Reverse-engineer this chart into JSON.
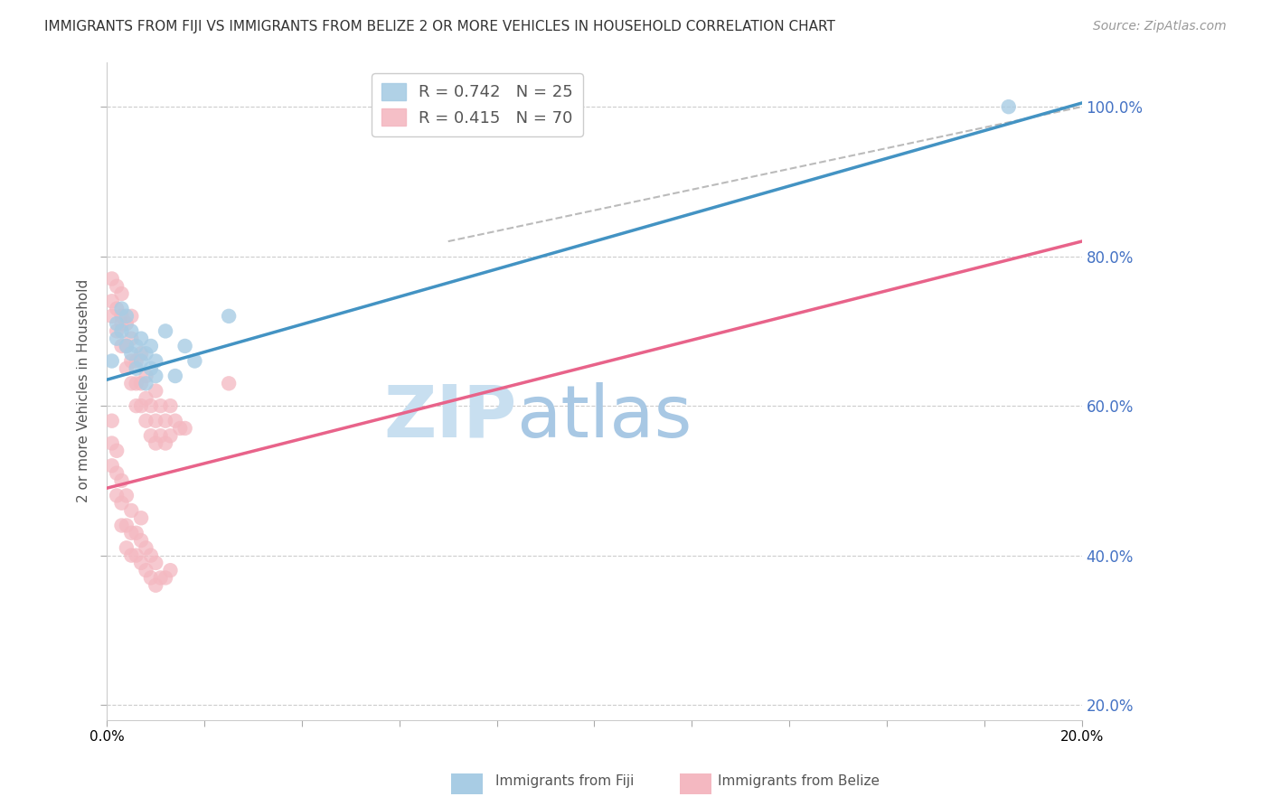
{
  "title": "IMMIGRANTS FROM FIJI VS IMMIGRANTS FROM BELIZE 2 OR MORE VEHICLES IN HOUSEHOLD CORRELATION CHART",
  "source_text": "Source: ZipAtlas.com",
  "ylabel": "2 or more Vehicles in Household",
  "xlim": [
    0.0,
    0.2
  ],
  "ylim": [
    0.18,
    1.06
  ],
  "right_yticks": [
    0.2,
    0.4,
    0.6,
    0.8,
    1.0
  ],
  "fiji_R": 0.742,
  "fiji_N": 25,
  "belize_R": 0.415,
  "belize_N": 70,
  "fiji_color": "#a8cce4",
  "belize_color": "#f4b8c1",
  "fiji_line_color": "#4393c3",
  "belize_line_color": "#e8638a",
  "fiji_line": {
    "x0": 0.0,
    "y0": 0.635,
    "x1": 0.2,
    "y1": 1.005
  },
  "belize_line": {
    "x0": 0.0,
    "y0": 0.49,
    "x1": 0.2,
    "y1": 0.82
  },
  "diag_line": {
    "x0": 0.07,
    "y0": 0.82,
    "x1": 0.2,
    "y1": 1.0
  },
  "fiji_scatter_x": [
    0.001,
    0.002,
    0.002,
    0.003,
    0.003,
    0.004,
    0.004,
    0.005,
    0.005,
    0.006,
    0.006,
    0.007,
    0.007,
    0.008,
    0.008,
    0.009,
    0.009,
    0.01,
    0.01,
    0.012,
    0.014,
    0.016,
    0.018,
    0.025,
    0.185
  ],
  "fiji_scatter_y": [
    0.66,
    0.69,
    0.71,
    0.73,
    0.7,
    0.68,
    0.72,
    0.67,
    0.7,
    0.65,
    0.68,
    0.66,
    0.69,
    0.63,
    0.67,
    0.65,
    0.68,
    0.64,
    0.66,
    0.7,
    0.64,
    0.68,
    0.66,
    0.72,
    1.0
  ],
  "belize_scatter_x": [
    0.001,
    0.001,
    0.001,
    0.002,
    0.002,
    0.002,
    0.003,
    0.003,
    0.003,
    0.003,
    0.004,
    0.004,
    0.004,
    0.005,
    0.005,
    0.005,
    0.005,
    0.006,
    0.006,
    0.006,
    0.007,
    0.007,
    0.007,
    0.008,
    0.008,
    0.008,
    0.009,
    0.009,
    0.01,
    0.01,
    0.01,
    0.011,
    0.011,
    0.012,
    0.012,
    0.013,
    0.013,
    0.014,
    0.015,
    0.016,
    0.001,
    0.001,
    0.001,
    0.002,
    0.002,
    0.002,
    0.003,
    0.003,
    0.003,
    0.004,
    0.004,
    0.004,
    0.005,
    0.005,
    0.005,
    0.006,
    0.006,
    0.007,
    0.007,
    0.007,
    0.008,
    0.008,
    0.009,
    0.009,
    0.01,
    0.01,
    0.011,
    0.012,
    0.013,
    0.025
  ],
  "belize_scatter_y": [
    0.72,
    0.74,
    0.77,
    0.7,
    0.73,
    0.76,
    0.68,
    0.72,
    0.75,
    0.71,
    0.65,
    0.68,
    0.71,
    0.63,
    0.66,
    0.69,
    0.72,
    0.6,
    0.63,
    0.66,
    0.6,
    0.63,
    0.67,
    0.58,
    0.61,
    0.64,
    0.56,
    0.6,
    0.55,
    0.58,
    0.62,
    0.56,
    0.6,
    0.55,
    0.58,
    0.56,
    0.6,
    0.58,
    0.57,
    0.57,
    0.52,
    0.55,
    0.58,
    0.48,
    0.51,
    0.54,
    0.44,
    0.47,
    0.5,
    0.41,
    0.44,
    0.48,
    0.4,
    0.43,
    0.46,
    0.4,
    0.43,
    0.39,
    0.42,
    0.45,
    0.38,
    0.41,
    0.37,
    0.4,
    0.36,
    0.39,
    0.37,
    0.37,
    0.38,
    0.63
  ],
  "watermark_color": "#ddeef8",
  "background_color": "#ffffff",
  "grid_color": "#cccccc"
}
